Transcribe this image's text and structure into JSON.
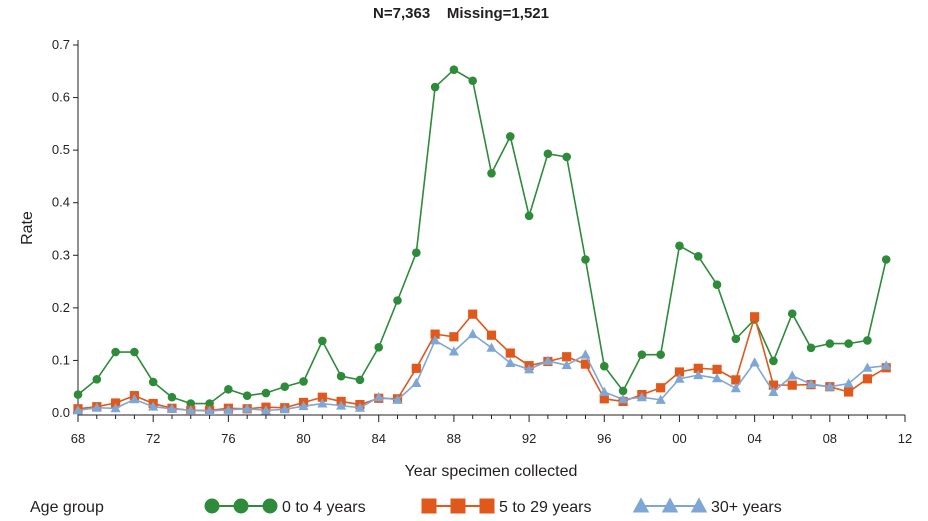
{
  "title": "N=7,363    Missing=1,521",
  "chart_data": {
    "type": "line",
    "title": "N=7,363    Missing=1,521",
    "xlabel": "Year specimen collected",
    "ylabel": "Rate",
    "x": [
      1968,
      1969,
      1970,
      1971,
      1972,
      1973,
      1974,
      1975,
      1976,
      1977,
      1978,
      1979,
      1980,
      1981,
      1982,
      1983,
      1984,
      1985,
      1986,
      1987,
      1988,
      1989,
      1990,
      1991,
      1992,
      1993,
      1994,
      1995,
      1996,
      1997,
      1998,
      1999,
      2000,
      2001,
      2002,
      2003,
      2004,
      2005,
      2006,
      2007,
      2008,
      2009,
      2010,
      2011
    ],
    "xlim": [
      1968,
      2012
    ],
    "ylim": [
      0,
      0.7
    ],
    "x_ticks": [
      {
        "value": 1968,
        "label": "68"
      },
      {
        "value": 1972,
        "label": "72"
      },
      {
        "value": 1976,
        "label": "76"
      },
      {
        "value": 1980,
        "label": "80"
      },
      {
        "value": 1984,
        "label": "84"
      },
      {
        "value": 1988,
        "label": "88"
      },
      {
        "value": 1992,
        "label": "92"
      },
      {
        "value": 1996,
        "label": "96"
      },
      {
        "value": 2000,
        "label": "00"
      },
      {
        "value": 2004,
        "label": "04"
      },
      {
        "value": 2008,
        "label": "08"
      },
      {
        "value": 2012,
        "label": "12"
      }
    ],
    "y_ticks": [
      {
        "value": 0,
        "label": "0.0"
      },
      {
        "value": 0.1,
        "label": "0.1"
      },
      {
        "value": 0.2,
        "label": "0.2"
      },
      {
        "value": 0.3,
        "label": "0.3"
      },
      {
        "value": 0.4,
        "label": "0.4"
      },
      {
        "value": 0.5,
        "label": "0.5"
      },
      {
        "value": 0.6,
        "label": "0.6"
      },
      {
        "value": 0.7,
        "label": "0.7"
      }
    ],
    "grid": false,
    "legend": {
      "title": "Age group",
      "position": "bottom"
    },
    "series": [
      {
        "name": "0 to 4 years",
        "color": "#2e8b3a",
        "marker": "circle",
        "values": [
          0.035,
          0.064,
          0.116,
          0.116,
          0.059,
          0.03,
          0.018,
          0.018,
          0.045,
          0.033,
          0.038,
          0.05,
          0.06,
          0.137,
          0.07,
          0.063,
          0.125,
          0.214,
          0.305,
          0.62,
          0.653,
          0.632,
          0.456,
          0.526,
          0.375,
          0.493,
          0.487,
          0.292,
          0.089,
          0.042,
          0.111,
          0.111,
          0.318,
          0.298,
          0.244,
          0.141,
          0.178,
          0.099,
          0.189,
          0.124,
          0.132,
          0.132,
          0.138,
          0.292
        ]
      },
      {
        "name": "5 to 29 years",
        "color": "#e0581c",
        "marker": "square",
        "values": [
          0.008,
          0.012,
          0.019,
          0.033,
          0.018,
          0.009,
          0.005,
          0.005,
          0.009,
          0.008,
          0.011,
          0.01,
          0.02,
          0.03,
          0.022,
          0.016,
          0.028,
          0.027,
          0.085,
          0.15,
          0.145,
          0.188,
          0.148,
          0.114,
          0.09,
          0.098,
          0.107,
          0.093,
          0.027,
          0.022,
          0.035,
          0.048,
          0.078,
          0.085,
          0.083,
          0.063,
          0.183,
          0.053,
          0.053,
          0.054,
          0.05,
          0.04,
          0.065,
          0.086
        ]
      },
      {
        "name": "30+ years",
        "color": "#7fa7d6",
        "marker": "triangle",
        "values": [
          0.005,
          0.01,
          0.009,
          0.026,
          0.012,
          0.008,
          0.005,
          0.004,
          0.006,
          0.008,
          0.005,
          0.007,
          0.013,
          0.018,
          0.014,
          0.01,
          0.03,
          0.025,
          0.057,
          0.138,
          0.117,
          0.15,
          0.124,
          0.095,
          0.083,
          0.099,
          0.091,
          0.111,
          0.04,
          0.026,
          0.03,
          0.025,
          0.065,
          0.072,
          0.066,
          0.047,
          0.096,
          0.04,
          0.071,
          0.055,
          0.05,
          0.056,
          0.086,
          0.09
        ]
      }
    ]
  }
}
